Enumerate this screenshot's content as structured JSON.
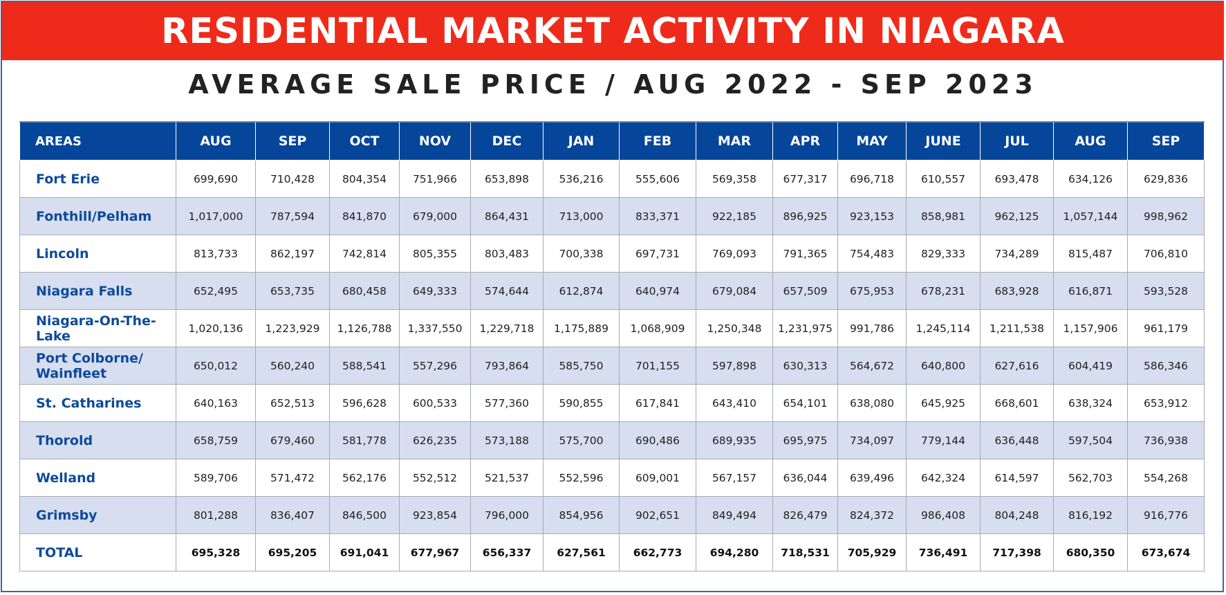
{
  "banner": {
    "title": "RESIDENTIAL MARKET ACTIVITY IN NIAGARA"
  },
  "subtitle": "AVERAGE SALE PRICE / AUG 2022 - SEP 2023",
  "colors": {
    "banner": "#ee2b1b",
    "header": "#05469a",
    "area_text": "#0c4a9b",
    "shaded_row": "#d6deef"
  },
  "table": {
    "columns": [
      "AREAS",
      "AUG",
      "SEP",
      "OCT",
      "NOV",
      "DEC",
      "JAN",
      "FEB",
      "MAR",
      "APR",
      "MAY",
      "JUNE",
      "JUL",
      "AUG",
      "SEP"
    ],
    "rows": [
      {
        "area": "Fort Erie",
        "values": [
          "699,690",
          "710,428",
          "804,354",
          "751,966",
          "653,898",
          "536,216",
          "555,606",
          "569,358",
          "677,317",
          "696,718",
          "610,557",
          "693,478",
          "634,126",
          "629,836"
        ]
      },
      {
        "area": "Fonthill/Pelham",
        "values": [
          "1,017,000",
          "787,594",
          "841,870",
          "679,000",
          "864,431",
          "713,000",
          "833,371",
          "922,185",
          "896,925",
          "923,153",
          "858,981",
          "962,125",
          "1,057,144",
          "998,962"
        ]
      },
      {
        "area": "Lincoln",
        "values": [
          "813,733",
          "862,197",
          "742,814",
          "805,355",
          "803,483",
          "700,338",
          "697,731",
          "769,093",
          "791,365",
          "754,483",
          "829,333",
          "734,289",
          "815,487",
          "706,810"
        ]
      },
      {
        "area": "Niagara Falls",
        "values": [
          "652,495",
          "653,735",
          "680,458",
          "649,333",
          "574,644",
          "612,874",
          "640,974",
          "679,084",
          "657,509",
          "675,953",
          "678,231",
          "683,928",
          "616,871",
          "593,528"
        ]
      },
      {
        "area": "Niagara-On-The-Lake",
        "values": [
          "1,020,136",
          "1,223,929",
          "1,126,788",
          "1,337,550",
          "1,229,718",
          "1,175,889",
          "1,068,909",
          "1,250,348",
          "1,231,975",
          "991,786",
          "1,245,114",
          "1,211,538",
          "1,157,906",
          "961,179"
        ]
      },
      {
        "area": "Port Colborne/ Wainfleet",
        "values": [
          "650,012",
          "560,240",
          "588,541",
          "557,296",
          "793,864",
          "585,750",
          "701,155",
          "597,898",
          "630,313",
          "564,672",
          "640,800",
          "627,616",
          "604,419",
          "586,346"
        ]
      },
      {
        "area": "St. Catharines",
        "values": [
          "640,163",
          "652,513",
          "596,628",
          "600,533",
          "577,360",
          "590,855",
          "617,841",
          "643,410",
          "654,101",
          "638,080",
          "645,925",
          "668,601",
          "638,324",
          "653,912"
        ]
      },
      {
        "area": "Thorold",
        "values": [
          "658,759",
          "679,460",
          "581,778",
          "626,235",
          "573,188",
          "575,700",
          "690,486",
          "689,935",
          "695,975",
          "734,097",
          "779,144",
          "636,448",
          "597,504",
          "736,938"
        ]
      },
      {
        "area": "Welland",
        "values": [
          "589,706",
          "571,472",
          "562,176",
          "552,512",
          "521,537",
          "552,596",
          "609,001",
          "567,157",
          "636,044",
          "639,496",
          "642,324",
          "614,597",
          "562,703",
          "554,268"
        ]
      },
      {
        "area": "Grimsby",
        "values": [
          "801,288",
          "836,407",
          "846,500",
          "923,854",
          "796,000",
          "854,956",
          "902,651",
          "849,494",
          "826,479",
          "824,372",
          "986,408",
          "804,248",
          "816,192",
          "916,776"
        ]
      },
      {
        "area": "TOTAL",
        "values": [
          "695,328",
          "695,205",
          "691,041",
          "677,967",
          "656,337",
          "627,561",
          "662,773",
          "694,280",
          "718,531",
          "705,929",
          "736,491",
          "717,398",
          "680,350",
          "673,674"
        ]
      }
    ]
  }
}
